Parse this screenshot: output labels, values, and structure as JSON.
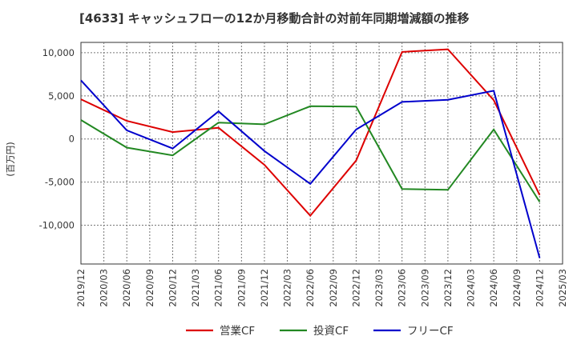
{
  "chart_data": {
    "type": "line",
    "title": "[4633]  キャッシュフローの12か月移動合計の対前年同期増減額の推移",
    "ylabel": "(百万円)",
    "xlabel": "",
    "ylim": [
      -14500,
      11200
    ],
    "yticks": [
      10000,
      5000,
      0,
      -5000,
      -10000
    ],
    "ytick_labels": [
      "10,000",
      "5,000",
      "0",
      "-5,000",
      "-10,000"
    ],
    "x_labels": [
      "2019/12",
      "2020/03",
      "2020/06",
      "2020/09",
      "2020/12",
      "2021/03",
      "2021/06",
      "2021/09",
      "2021/12",
      "2022/03",
      "2022/06",
      "2022/09",
      "2022/12",
      "2023/03",
      "2023/06",
      "2023/09",
      "2023/12",
      "2024/03",
      "2024/06",
      "2024/09",
      "2024/12",
      "2025/03"
    ],
    "series": [
      {
        "name": "営業CF",
        "color": "#dd0000",
        "points": [
          [
            "2019/12",
            4600
          ],
          [
            "2020/06",
            2100
          ],
          [
            "2020/12",
            800
          ],
          [
            "2021/06",
            1300
          ],
          [
            "2021/12",
            -3000
          ],
          [
            "2022/06",
            -8900
          ],
          [
            "2022/12",
            -2500
          ],
          [
            "2023/06",
            10100
          ],
          [
            "2023/12",
            10400
          ],
          [
            "2024/06",
            4500
          ],
          [
            "2024/12",
            -6500
          ]
        ]
      },
      {
        "name": "投資CF",
        "color": "#228822",
        "points": [
          [
            "2019/12",
            2200
          ],
          [
            "2020/06",
            -1000
          ],
          [
            "2020/12",
            -1900
          ],
          [
            "2021/06",
            1900
          ],
          [
            "2021/12",
            1700
          ],
          [
            "2022/06",
            3800
          ],
          [
            "2022/12",
            3750
          ],
          [
            "2023/06",
            -5800
          ],
          [
            "2023/12",
            -5900
          ],
          [
            "2024/06",
            1100
          ],
          [
            "2024/12",
            -7300
          ]
        ]
      },
      {
        "name": "フリーCF",
        "color": "#0000cc",
        "points": [
          [
            "2019/12",
            6800
          ],
          [
            "2020/06",
            1000
          ],
          [
            "2020/12",
            -1100
          ],
          [
            "2021/06",
            3200
          ],
          [
            "2021/12",
            -1400
          ],
          [
            "2022/06",
            -5200
          ],
          [
            "2022/12",
            1100
          ],
          [
            "2023/06",
            4300
          ],
          [
            "2023/12",
            4550
          ],
          [
            "2024/06",
            5600
          ],
          [
            "2024/12",
            -13800
          ]
        ]
      }
    ],
    "grid": true,
    "legend": "bottom"
  }
}
